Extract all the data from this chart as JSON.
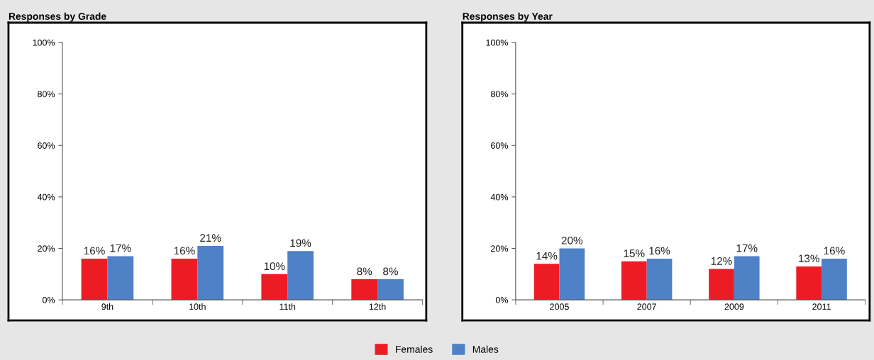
{
  "chart_data": [
    {
      "type": "bar",
      "title": "Responses by Grade",
      "categories": [
        "9th",
        "10th",
        "11th",
        "12th"
      ],
      "series": [
        {
          "name": "Females",
          "color": "#ed1c24",
          "values": [
            16,
            16,
            10,
            8
          ],
          "value_labels": [
            "16%",
            "16%",
            "10%",
            "8%"
          ]
        },
        {
          "name": "Males",
          "color": "#4f81c7",
          "values": [
            17,
            21,
            19,
            8
          ],
          "value_labels": [
            "17%",
            "21%",
            "19%",
            "8%"
          ]
        }
      ],
      "ylim": [
        0,
        100
      ],
      "yticks": [
        {
          "value": 0,
          "label": "0%"
        },
        {
          "value": 20,
          "label": "20%"
        },
        {
          "value": 40,
          "label": "40%"
        },
        {
          "value": 60,
          "label": "60%"
        },
        {
          "value": 80,
          "label": "80%"
        },
        {
          "value": 100,
          "label": "100%"
        }
      ],
      "grid": false,
      "legend": "bottom"
    },
    {
      "type": "bar",
      "title": "Responses by Year",
      "categories": [
        "2005",
        "2007",
        "2009",
        "2011"
      ],
      "series": [
        {
          "color": "#ed1c24",
          "values": [
            14,
            15,
            12,
            13
          ],
          "value_labels": [
            "14%",
            "15%",
            "12%",
            "13%"
          ]
        },
        {
          "color": "#4f81c7",
          "values": [
            20,
            16,
            17,
            16
          ],
          "value_labels": [
            "20%",
            "16%",
            "17%",
            "16%"
          ]
        }
      ],
      "ylim": [
        0,
        100
      ],
      "yticks": [
        {
          "value": 0,
          "label": "0%"
        },
        {
          "value": 20,
          "label": "20%"
        },
        {
          "value": 40,
          "label": "40%"
        },
        {
          "value": 60,
          "label": "60%"
        },
        {
          "value": 80,
          "label": "80%"
        },
        {
          "value": 100,
          "label": "100%"
        }
      ],
      "grid": false
    }
  ]
}
